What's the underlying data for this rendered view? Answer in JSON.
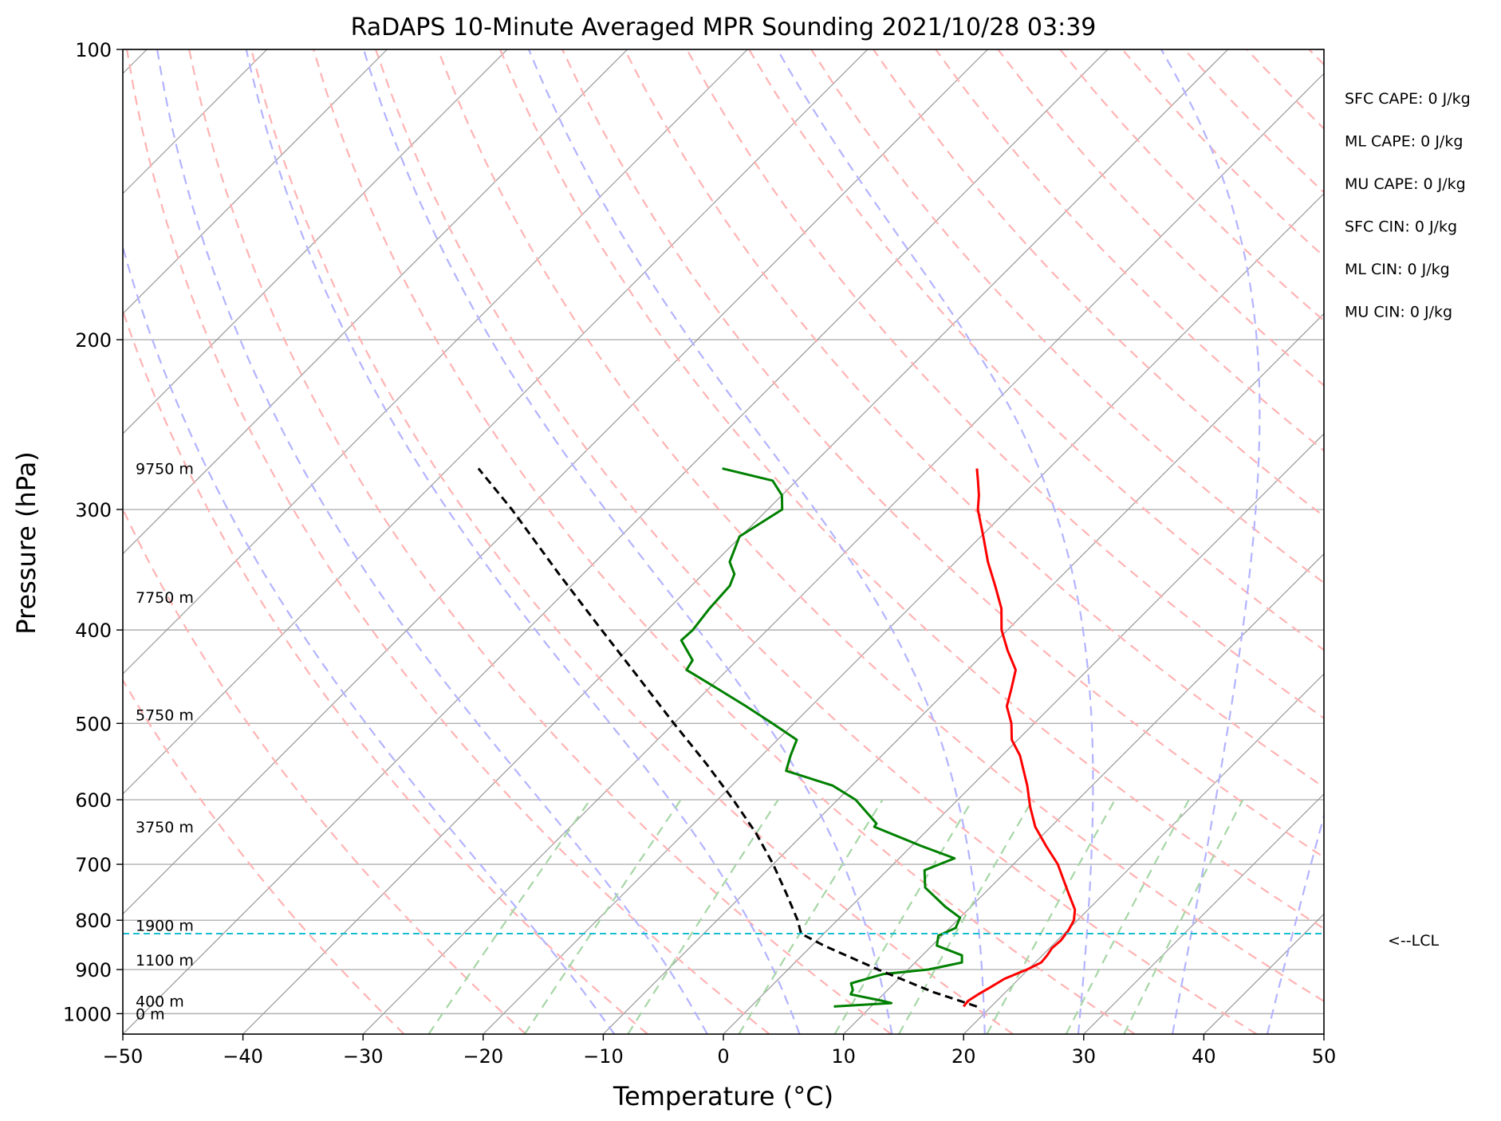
{
  "chart_data": {
    "type": "line",
    "title": "RaDAPS 10-Minute Averaged MPR Sounding 2021/10/28 03:39",
    "xlabel": "Temperature (°C)",
    "ylabel": "Pressure (hPa)",
    "xlim": [
      -50,
      50
    ],
    "ylim": [
      1050,
      100
    ],
    "y_scale": "log",
    "skew": true,
    "grid": true,
    "x_ticks": [
      "−50",
      "−40",
      "−30",
      "−20",
      "−10",
      "0",
      "10",
      "20",
      "30",
      "40",
      "50"
    ],
    "x_tick_values": [
      -50,
      -40,
      -30,
      -20,
      -10,
      0,
      10,
      20,
      30,
      40,
      50
    ],
    "y_ticks": [
      "100",
      "200",
      "300",
      "400",
      "500",
      "600",
      "700",
      "800",
      "900",
      "1000"
    ],
    "y_tick_values": [
      100,
      200,
      300,
      400,
      500,
      600,
      700,
      800,
      900,
      1000
    ],
    "height_labels": [
      {
        "text": "9750 m",
        "p": 272
      },
      {
        "text": "7750 m",
        "p": 370
      },
      {
        "text": "5750 m",
        "p": 490
      },
      {
        "text": "3750 m",
        "p": 640
      },
      {
        "text": "1900 m",
        "p": 810
      },
      {
        "text": "1100 m",
        "p": 880
      },
      {
        "text": "400 m",
        "p": 970
      },
      {
        "text": "0 m",
        "p": 1000
      }
    ],
    "indices": [
      "SFC CAPE: 0 J/kg",
      "ML CAPE: 0 J/kg",
      "MU CAPE: 0 J/kg",
      "SFC CIN: 0 J/kg",
      "ML CIN: 0 J/kg",
      "MU CIN: 0 J/kg"
    ],
    "lcl": {
      "label": "<--LCL",
      "p": 826,
      "color": "#17becf"
    },
    "series": [
      {
        "color": "#ff0000",
        "points": [
          [
            983,
            17.7
          ],
          [
            970,
            17.6
          ],
          [
            955,
            17.9
          ],
          [
            940,
            18.3
          ],
          [
            920,
            18.8
          ],
          [
            900,
            19.9
          ],
          [
            885,
            20.5
          ],
          [
            870,
            20.4
          ],
          [
            855,
            20.2
          ],
          [
            840,
            20.3
          ],
          [
            820,
            20.1
          ],
          [
            800,
            19.7
          ],
          [
            780,
            18.9
          ],
          [
            750,
            17.0
          ],
          [
            700,
            13.7
          ],
          [
            670,
            11.2
          ],
          [
            640,
            8.7
          ],
          [
            610,
            6.6
          ],
          [
            580,
            4.6
          ],
          [
            540,
            1.5
          ],
          [
            520,
            -0.5
          ],
          [
            500,
            -1.9
          ],
          [
            480,
            -3.7
          ],
          [
            460,
            -4.8
          ],
          [
            440,
            -6.0
          ],
          [
            420,
            -8.3
          ],
          [
            400,
            -10.5
          ],
          [
            380,
            -12.3
          ],
          [
            360,
            -14.7
          ],
          [
            340,
            -17.3
          ],
          [
            320,
            -19.8
          ],
          [
            300,
            -22.5
          ],
          [
            290,
            -23.6
          ],
          [
            280,
            -24.9
          ],
          [
            272,
            -26.0
          ]
        ]
      },
      {
        "color": "#008000",
        "points": [
          [
            983,
            6.9
          ],
          [
            975,
            11.4
          ],
          [
            970,
            10.5
          ],
          [
            955,
            7.3
          ],
          [
            945,
            7.1
          ],
          [
            930,
            6.4
          ],
          [
            910,
            8.3
          ],
          [
            900,
            11.7
          ],
          [
            885,
            13.9
          ],
          [
            870,
            13.3
          ],
          [
            850,
            10.4
          ],
          [
            830,
            9.7
          ],
          [
            815,
            10.5
          ],
          [
            795,
            10.0
          ],
          [
            775,
            7.9
          ],
          [
            740,
            4.6
          ],
          [
            710,
            3.1
          ],
          [
            690,
            4.6
          ],
          [
            670,
            0.8
          ],
          [
            640,
            -4.7
          ],
          [
            635,
            -4.8
          ],
          [
            600,
            -8.5
          ],
          [
            580,
            -11.6
          ],
          [
            560,
            -16.7
          ],
          [
            540,
            -17.6
          ],
          [
            520,
            -18.4
          ],
          [
            500,
            -21.8
          ],
          [
            480,
            -25.4
          ],
          [
            460,
            -29.3
          ],
          [
            440,
            -33.4
          ],
          [
            430,
            -33.7
          ],
          [
            410,
            -36.3
          ],
          [
            400,
            -36.2
          ],
          [
            380,
            -36.6
          ],
          [
            360,
            -36.8
          ],
          [
            350,
            -37.4
          ],
          [
            340,
            -38.8
          ],
          [
            320,
            -40.1
          ],
          [
            300,
            -38.8
          ],
          [
            290,
            -40.0
          ],
          [
            280,
            -42.0
          ],
          [
            272,
            -47.2
          ]
        ]
      },
      {
        "color": "#000000",
        "style": "dashed",
        "points": [
          [
            983,
            18.8
          ],
          [
            950,
            14.0
          ],
          [
            900,
            7.5
          ],
          [
            850,
            1.0
          ],
          [
            826,
            -1.9
          ],
          [
            800,
            -3.3
          ],
          [
            750,
            -6.5
          ],
          [
            700,
            -10.0
          ],
          [
            650,
            -14.0
          ],
          [
            600,
            -18.7
          ],
          [
            550,
            -24.0
          ],
          [
            500,
            -30.0
          ],
          [
            450,
            -36.5
          ],
          [
            400,
            -43.8
          ],
          [
            350,
            -52.0
          ],
          [
            300,
            -61.3
          ],
          [
            272,
            -67.5
          ]
        ]
      }
    ],
    "reference_lines": {
      "isotherms_color": "#999999",
      "dry_adiabats_color": "#ffb3b3",
      "moist_adiabats_color": "#b3b3ff",
      "mixing_ratio_color": "#a6d6a6"
    }
  }
}
